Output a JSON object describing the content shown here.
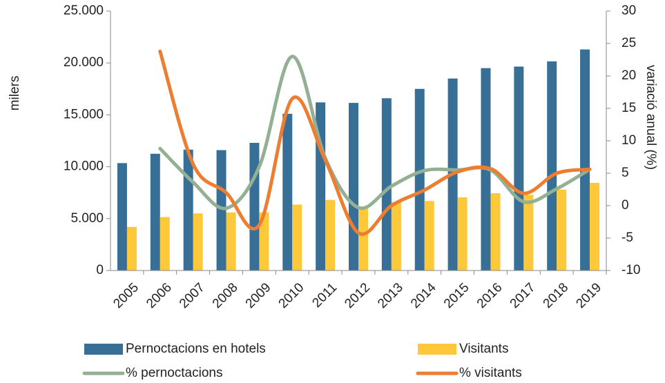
{
  "chart_data": {
    "type": "bar",
    "y_label": "milers",
    "y2_label": "variació anual (%)",
    "categories": [
      "2005",
      "2006",
      "2007",
      "2008",
      "2009",
      "2010",
      "2011",
      "2012",
      "2013",
      "2014",
      "2015",
      "2016",
      "2017",
      "2018",
      "2019"
    ],
    "series": [
      {
        "name": "Pernoctacions en hotels",
        "type": "bar",
        "color": "#386f97",
        "values": [
          10350,
          11250,
          11650,
          11600,
          12300,
          15100,
          16200,
          16150,
          16600,
          17500,
          18500,
          19500,
          19650,
          20150,
          21300
        ]
      },
      {
        "name": "Visitants",
        "type": "bar",
        "color": "#fdc93a",
        "values": [
          4200,
          5150,
          5500,
          5600,
          5600,
          6350,
          6800,
          6000,
          6600,
          6700,
          7050,
          7450,
          7300,
          7800,
          8450
        ]
      },
      {
        "name": "% pernoctacions",
        "type": "line",
        "axis": "y2",
        "color": "#93b094",
        "values": [
          null,
          8.8,
          3.6,
          -0.4,
          6.0,
          23,
          7.3,
          -0.3,
          3,
          5.4,
          5.5,
          5.5,
          0.6,
          2.6,
          5.6
        ]
      },
      {
        "name": "% visitants",
        "type": "line",
        "axis": "y2",
        "color": "#ed7d31",
        "values": [
          null,
          23.8,
          6.4,
          2,
          -3,
          16.5,
          7,
          -4.2,
          0,
          2.4,
          5.2,
          5.7,
          1.9,
          5.0,
          5.6
        ]
      }
    ],
    "ylim": [
      0,
      25000
    ],
    "yticks": [
      {
        "value": 0,
        "label": "0"
      },
      {
        "value": 5000,
        "label": "5.000"
      },
      {
        "value": 10000,
        "label": "10.000"
      },
      {
        "value": 15000,
        "label": "15.000"
      },
      {
        "value": 20000,
        "label": "20.000"
      },
      {
        "value": 25000,
        "label": "25.000"
      }
    ],
    "y2lim": [
      -10,
      30
    ],
    "y2ticks": [
      -10,
      -5,
      0,
      5,
      10,
      15,
      20,
      25,
      30
    ],
    "grid": false,
    "legend": "bottom"
  }
}
